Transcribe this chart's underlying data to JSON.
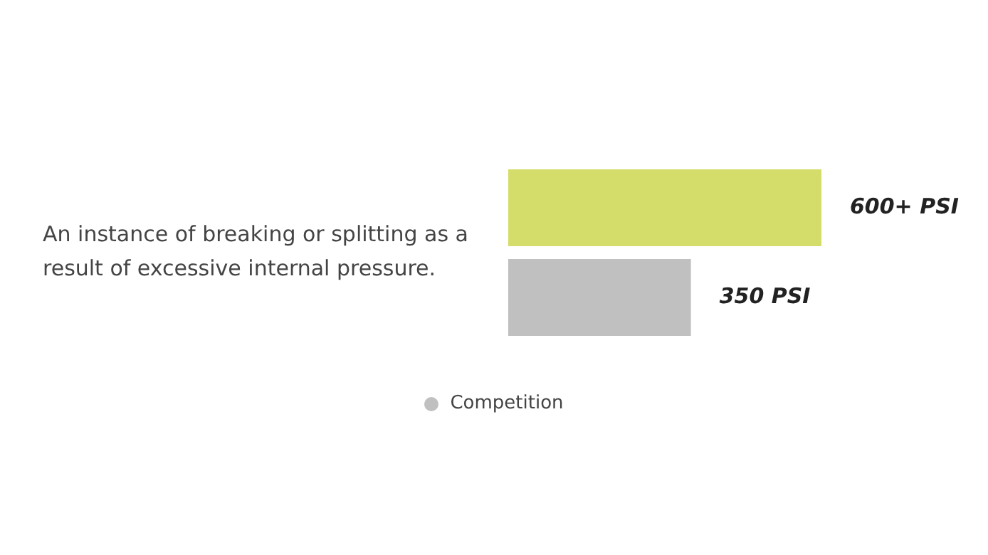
{
  "chart_data": {
    "type": "bar",
    "orientation": "horizontal",
    "legend": "bottom",
    "categories": [
      "An instance of breaking or splitting as a result of excessive internal pressure."
    ],
    "series": [
      {
        "color": "#d4dc6a",
        "values": [
          600
        ],
        "value_labels": [
          "600+ PSI"
        ]
      },
      {
        "name": "Competition",
        "color": "#c0c0c0",
        "values": [
          350
        ],
        "value_labels": [
          "350 PSI"
        ]
      }
    ]
  }
}
